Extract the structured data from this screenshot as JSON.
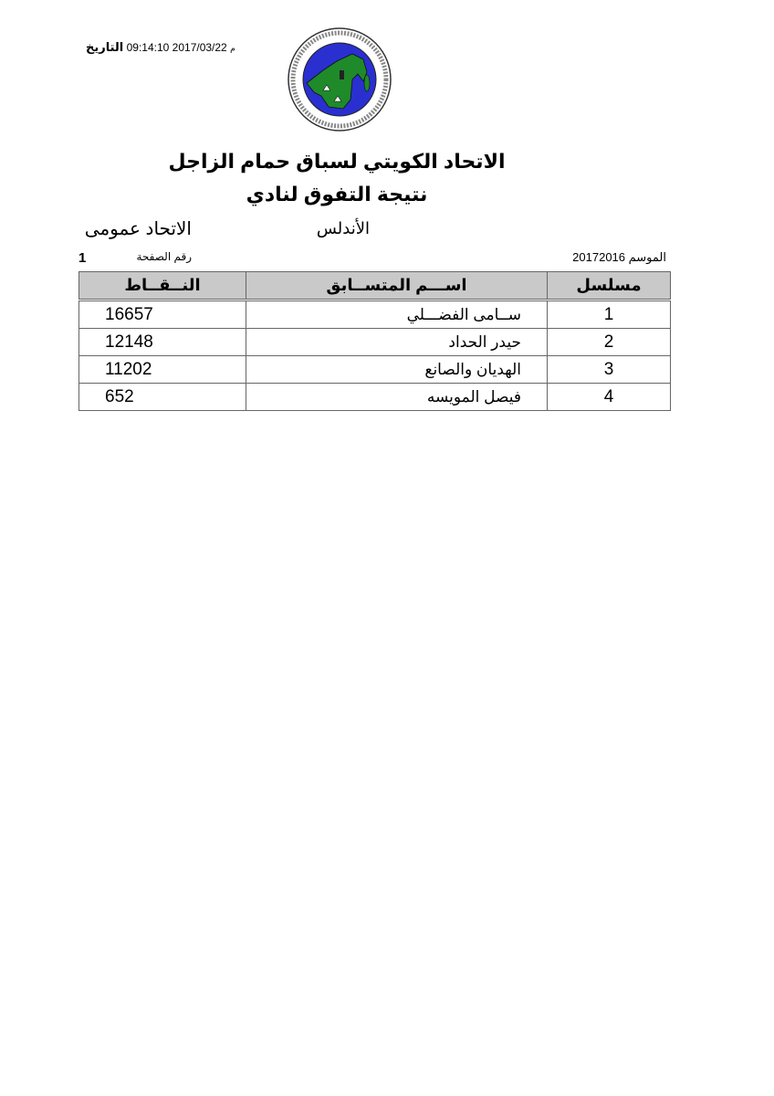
{
  "header": {
    "date_label": "التاريخ",
    "date_value": "2017/03/22 09:14:10",
    "date_suffix": "م",
    "logo_text": "KUWAIT FEDERATION FOR RACING PIGEON — الاتحاد الكويتي لسباق حمام الزاجل",
    "title": "الاتحاد الكويتي لسباق حمام الزاجل",
    "subtitle": "نتيجة التفوق لنادي",
    "club": "الأندلس",
    "category": "الاتحاد عمومى",
    "season_label": "الموسم",
    "season_value": "20172016",
    "page_label": "رقم الصفحة",
    "page_number": "1"
  },
  "colors": {
    "logo_blue": "#2a2fd0",
    "logo_green": "#1f8a2a",
    "header_bg": "#c9c9c9"
  },
  "table": {
    "columns": {
      "serial": "مسلسل",
      "name": "اســـم المتســابق",
      "points": "النــقــاط"
    },
    "rows": [
      {
        "serial": "1",
        "name": "ســامى الفضـــلي",
        "points": "16657"
      },
      {
        "serial": "2",
        "name": "حيدر الحداد",
        "points": "12148"
      },
      {
        "serial": "3",
        "name": "الهديان والصانع",
        "points": "11202"
      },
      {
        "serial": "4",
        "name": "فيصل المويسه",
        "points": "652"
      }
    ]
  }
}
